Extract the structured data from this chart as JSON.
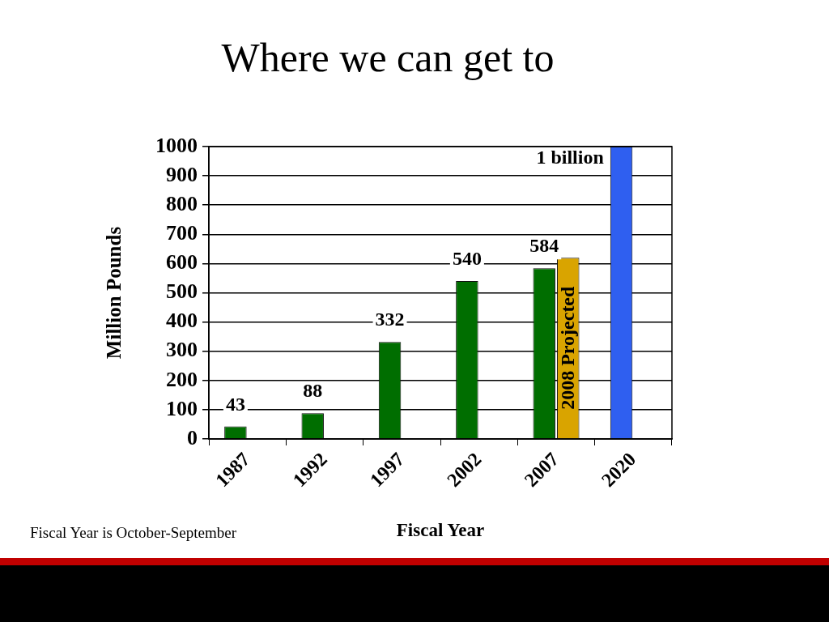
{
  "chart_data": {
    "type": "bar",
    "title": "Where we can get to",
    "xlabel": "Fiscal Year",
    "ylabel": "Million Pounds",
    "categories": [
      "1987",
      "1992",
      "1997",
      "2002",
      "2007",
      "2020"
    ],
    "series": [
      {
        "colors": [
          "#006e00",
          "#006e00",
          "#006e00",
          "#006e00",
          "#006e00",
          "#2f5ff0"
        ],
        "values": [
          43,
          88,
          332,
          540,
          584,
          1000
        ],
        "value_labels": [
          "43",
          "88",
          "332",
          "540",
          "584",
          null
        ]
      },
      {
        "name": "2008 Projected",
        "color": "#d9a400",
        "values": [
          null,
          null,
          null,
          null,
          620,
          null
        ]
      }
    ],
    "ylim": [
      0,
      1000
    ],
    "yticks": [
      0,
      100,
      200,
      300,
      400,
      500,
      600,
      700,
      800,
      900,
      1000
    ],
    "grid": "y",
    "annotations": [
      {
        "text": "1 billion",
        "x": "2020",
        "y": 1000
      },
      "Fiscal Year is October-September"
    ]
  }
}
